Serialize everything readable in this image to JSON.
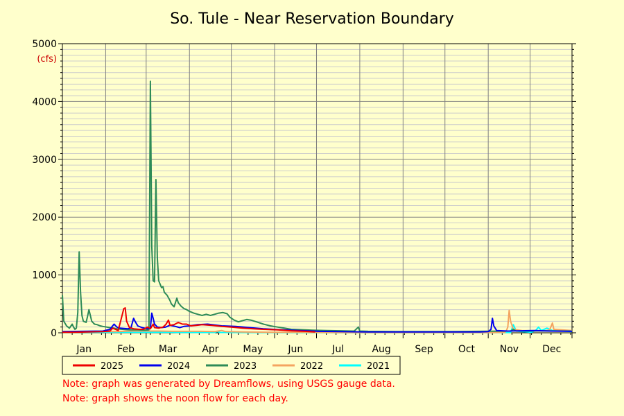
{
  "chart_data": {
    "type": "line",
    "title": "So. Tule - Near Reservation Boundary",
    "unit_label": "(cfs)",
    "x_axis": {
      "type": "day-of-year",
      "range": [
        1,
        366
      ],
      "months": [
        "Jan",
        "Feb",
        "Mar",
        "Apr",
        "May",
        "Jun",
        "Jul",
        "Aug",
        "Sep",
        "Oct",
        "Nov",
        "Dec"
      ]
    },
    "y_axis": {
      "range": [
        0,
        5000
      ],
      "ticks": [
        "0",
        "1000",
        "2000",
        "3000",
        "4000",
        "5000"
      ]
    },
    "grid": true,
    "legend_position": "bottom",
    "series": [
      {
        "name": "2025",
        "color": "#ee0000",
        "points": [
          [
            1,
            10
          ],
          [
            10,
            10
          ],
          [
            20,
            15
          ],
          [
            30,
            20
          ],
          [
            35,
            30
          ],
          [
            37,
            80
          ],
          [
            39,
            60
          ],
          [
            41,
            40
          ],
          [
            45,
            420
          ],
          [
            46,
            430
          ],
          [
            47,
            200
          ],
          [
            49,
            90
          ],
          [
            52,
            70
          ],
          [
            56,
            60
          ],
          [
            59,
            60
          ],
          [
            62,
            100
          ],
          [
            64,
            70
          ],
          [
            66,
            150
          ],
          [
            67,
            90
          ],
          [
            70,
            80
          ],
          [
            73,
            100
          ],
          [
            75,
            140
          ],
          [
            77,
            220
          ],
          [
            78,
            130
          ],
          [
            81,
            140
          ],
          [
            84,
            180
          ],
          [
            87,
            150
          ],
          [
            90,
            150
          ],
          [
            93,
            120
          ],
          [
            97,
            130
          ],
          [
            101,
            140
          ],
          [
            108,
            130
          ],
          [
            115,
            110
          ],
          [
            122,
            100
          ],
          [
            130,
            80
          ],
          [
            138,
            70
          ],
          [
            145,
            60
          ],
          [
            155,
            50
          ],
          [
            165,
            35
          ],
          [
            175,
            25
          ],
          [
            182,
            15
          ]
        ]
      },
      {
        "name": "2024",
        "color": "#0000ee",
        "points": [
          [
            1,
            20
          ],
          [
            15,
            25
          ],
          [
            30,
            30
          ],
          [
            35,
            60
          ],
          [
            38,
            150
          ],
          [
            40,
            100
          ],
          [
            42,
            80
          ],
          [
            48,
            70
          ],
          [
            50,
            80
          ],
          [
            52,
            250
          ],
          [
            53,
            200
          ],
          [
            55,
            120
          ],
          [
            58,
            90
          ],
          [
            62,
            70
          ],
          [
            64,
            80
          ],
          [
            65,
            340
          ],
          [
            66,
            250
          ],
          [
            67,
            150
          ],
          [
            69,
            100
          ],
          [
            72,
            90
          ],
          [
            75,
            100
          ],
          [
            78,
            130
          ],
          [
            82,
            110
          ],
          [
            85,
            90
          ],
          [
            88,
            110
          ],
          [
            92,
            120
          ],
          [
            98,
            140
          ],
          [
            105,
            150
          ],
          [
            115,
            120
          ],
          [
            125,
            110
          ],
          [
            135,
            90
          ],
          [
            145,
            70
          ],
          [
            155,
            55
          ],
          [
            165,
            45
          ],
          [
            175,
            35
          ],
          [
            185,
            25
          ],
          [
            200,
            20
          ],
          [
            220,
            15
          ],
          [
            240,
            15
          ],
          [
            260,
            15
          ],
          [
            280,
            15
          ],
          [
            300,
            15
          ],
          [
            306,
            20
          ],
          [
            308,
            60
          ],
          [
            309,
            250
          ],
          [
            310,
            120
          ],
          [
            312,
            40
          ],
          [
            320,
            30
          ],
          [
            330,
            35
          ],
          [
            340,
            40
          ],
          [
            350,
            30
          ],
          [
            366,
            25
          ]
        ]
      },
      {
        "name": "2023",
        "color": "#2e8b57",
        "points": [
          [
            1,
            650
          ],
          [
            2,
            200
          ],
          [
            4,
            120
          ],
          [
            6,
            80
          ],
          [
            8,
            150
          ],
          [
            9,
            100
          ],
          [
            10,
            60
          ],
          [
            11,
            80
          ],
          [
            12,
            350
          ],
          [
            13,
            1400
          ],
          [
            14,
            700
          ],
          [
            15,
            300
          ],
          [
            16,
            200
          ],
          [
            18,
            180
          ],
          [
            19,
            280
          ],
          [
            20,
            400
          ],
          [
            21,
            300
          ],
          [
            22,
            200
          ],
          [
            24,
            150
          ],
          [
            26,
            140
          ],
          [
            28,
            120
          ],
          [
            30,
            110
          ],
          [
            35,
            90
          ],
          [
            38,
            80
          ],
          [
            40,
            70
          ],
          [
            42,
            65
          ],
          [
            46,
            55
          ],
          [
            50,
            50
          ],
          [
            55,
            50
          ],
          [
            60,
            45
          ],
          [
            63,
            50
          ],
          [
            64,
            4350
          ],
          [
            65,
            1500
          ],
          [
            66,
            900
          ],
          [
            67,
            880
          ],
          [
            68,
            2650
          ],
          [
            69,
            1300
          ],
          [
            70,
            900
          ],
          [
            72,
            780
          ],
          [
            73,
            800
          ],
          [
            74,
            700
          ],
          [
            76,
            650
          ],
          [
            78,
            560
          ],
          [
            79,
            500
          ],
          [
            81,
            450
          ],
          [
            83,
            600
          ],
          [
            84,
            520
          ],
          [
            86,
            460
          ],
          [
            88,
            420
          ],
          [
            90,
            400
          ],
          [
            92,
            370
          ],
          [
            95,
            340
          ],
          [
            98,
            320
          ],
          [
            101,
            300
          ],
          [
            104,
            320
          ],
          [
            107,
            300
          ],
          [
            110,
            320
          ],
          [
            113,
            340
          ],
          [
            116,
            350
          ],
          [
            119,
            330
          ],
          [
            121,
            270
          ],
          [
            124,
            220
          ],
          [
            127,
            190
          ],
          [
            130,
            210
          ],
          [
            133,
            230
          ],
          [
            136,
            220
          ],
          [
            140,
            190
          ],
          [
            145,
            150
          ],
          [
            150,
            120
          ],
          [
            155,
            100
          ],
          [
            160,
            80
          ],
          [
            165,
            60
          ],
          [
            170,
            55
          ],
          [
            175,
            50
          ],
          [
            180,
            45
          ],
          [
            190,
            40
          ],
          [
            200,
            35
          ],
          [
            210,
            30
          ],
          [
            213,
            100
          ],
          [
            214,
            30
          ],
          [
            220,
            25
          ],
          [
            240,
            20
          ],
          [
            260,
            20
          ],
          [
            280,
            20
          ],
          [
            300,
            25
          ],
          [
            322,
            30
          ],
          [
            324,
            60
          ],
          [
            326,
            30
          ],
          [
            335,
            30
          ],
          [
            345,
            35
          ],
          [
            366,
            30
          ]
        ]
      },
      {
        "name": "2022",
        "color": "#f4a460",
        "points": [
          [
            1,
            20
          ],
          [
            30,
            20
          ],
          [
            40,
            20
          ],
          [
            50,
            30
          ],
          [
            60,
            30
          ],
          [
            70,
            30
          ],
          [
            80,
            25
          ],
          [
            90,
            25
          ],
          [
            100,
            25
          ],
          [
            110,
            20
          ],
          [
            115,
            40
          ],
          [
            118,
            20
          ],
          [
            130,
            15
          ],
          [
            150,
            10
          ],
          [
            170,
            8
          ],
          [
            190,
            6
          ],
          [
            210,
            5
          ],
          [
            240,
            5
          ],
          [
            270,
            5
          ],
          [
            300,
            5
          ],
          [
            310,
            5
          ],
          [
            318,
            10
          ],
          [
            319,
            40
          ],
          [
            320,
            100
          ],
          [
            321,
            390
          ],
          [
            322,
            200
          ],
          [
            324,
            60
          ],
          [
            330,
            40
          ],
          [
            345,
            30
          ],
          [
            350,
            50
          ],
          [
            352,
            170
          ],
          [
            353,
            60
          ],
          [
            366,
            40
          ]
        ]
      },
      {
        "name": "2021",
        "color": "#00ffff",
        "points": [
          [
            1,
            10
          ],
          [
            40,
            10
          ],
          [
            80,
            8
          ],
          [
            110,
            6
          ],
          [
            112,
            20
          ],
          [
            114,
            6
          ],
          [
            150,
            5
          ],
          [
            200,
            4
          ],
          [
            250,
            3
          ],
          [
            300,
            3
          ],
          [
            322,
            5
          ],
          [
            324,
            140
          ],
          [
            326,
            30
          ],
          [
            330,
            20
          ],
          [
            334,
            15
          ],
          [
            337,
            10
          ],
          [
            340,
            40
          ],
          [
            342,
            100
          ],
          [
            344,
            40
          ],
          [
            348,
            80
          ],
          [
            352,
            40
          ],
          [
            366,
            20
          ]
        ]
      }
    ]
  },
  "notes": [
    "Note: graph was generated by Dreamflows, using USGS gauge data.",
    "Note: graph shows the noon flow for each day."
  ]
}
